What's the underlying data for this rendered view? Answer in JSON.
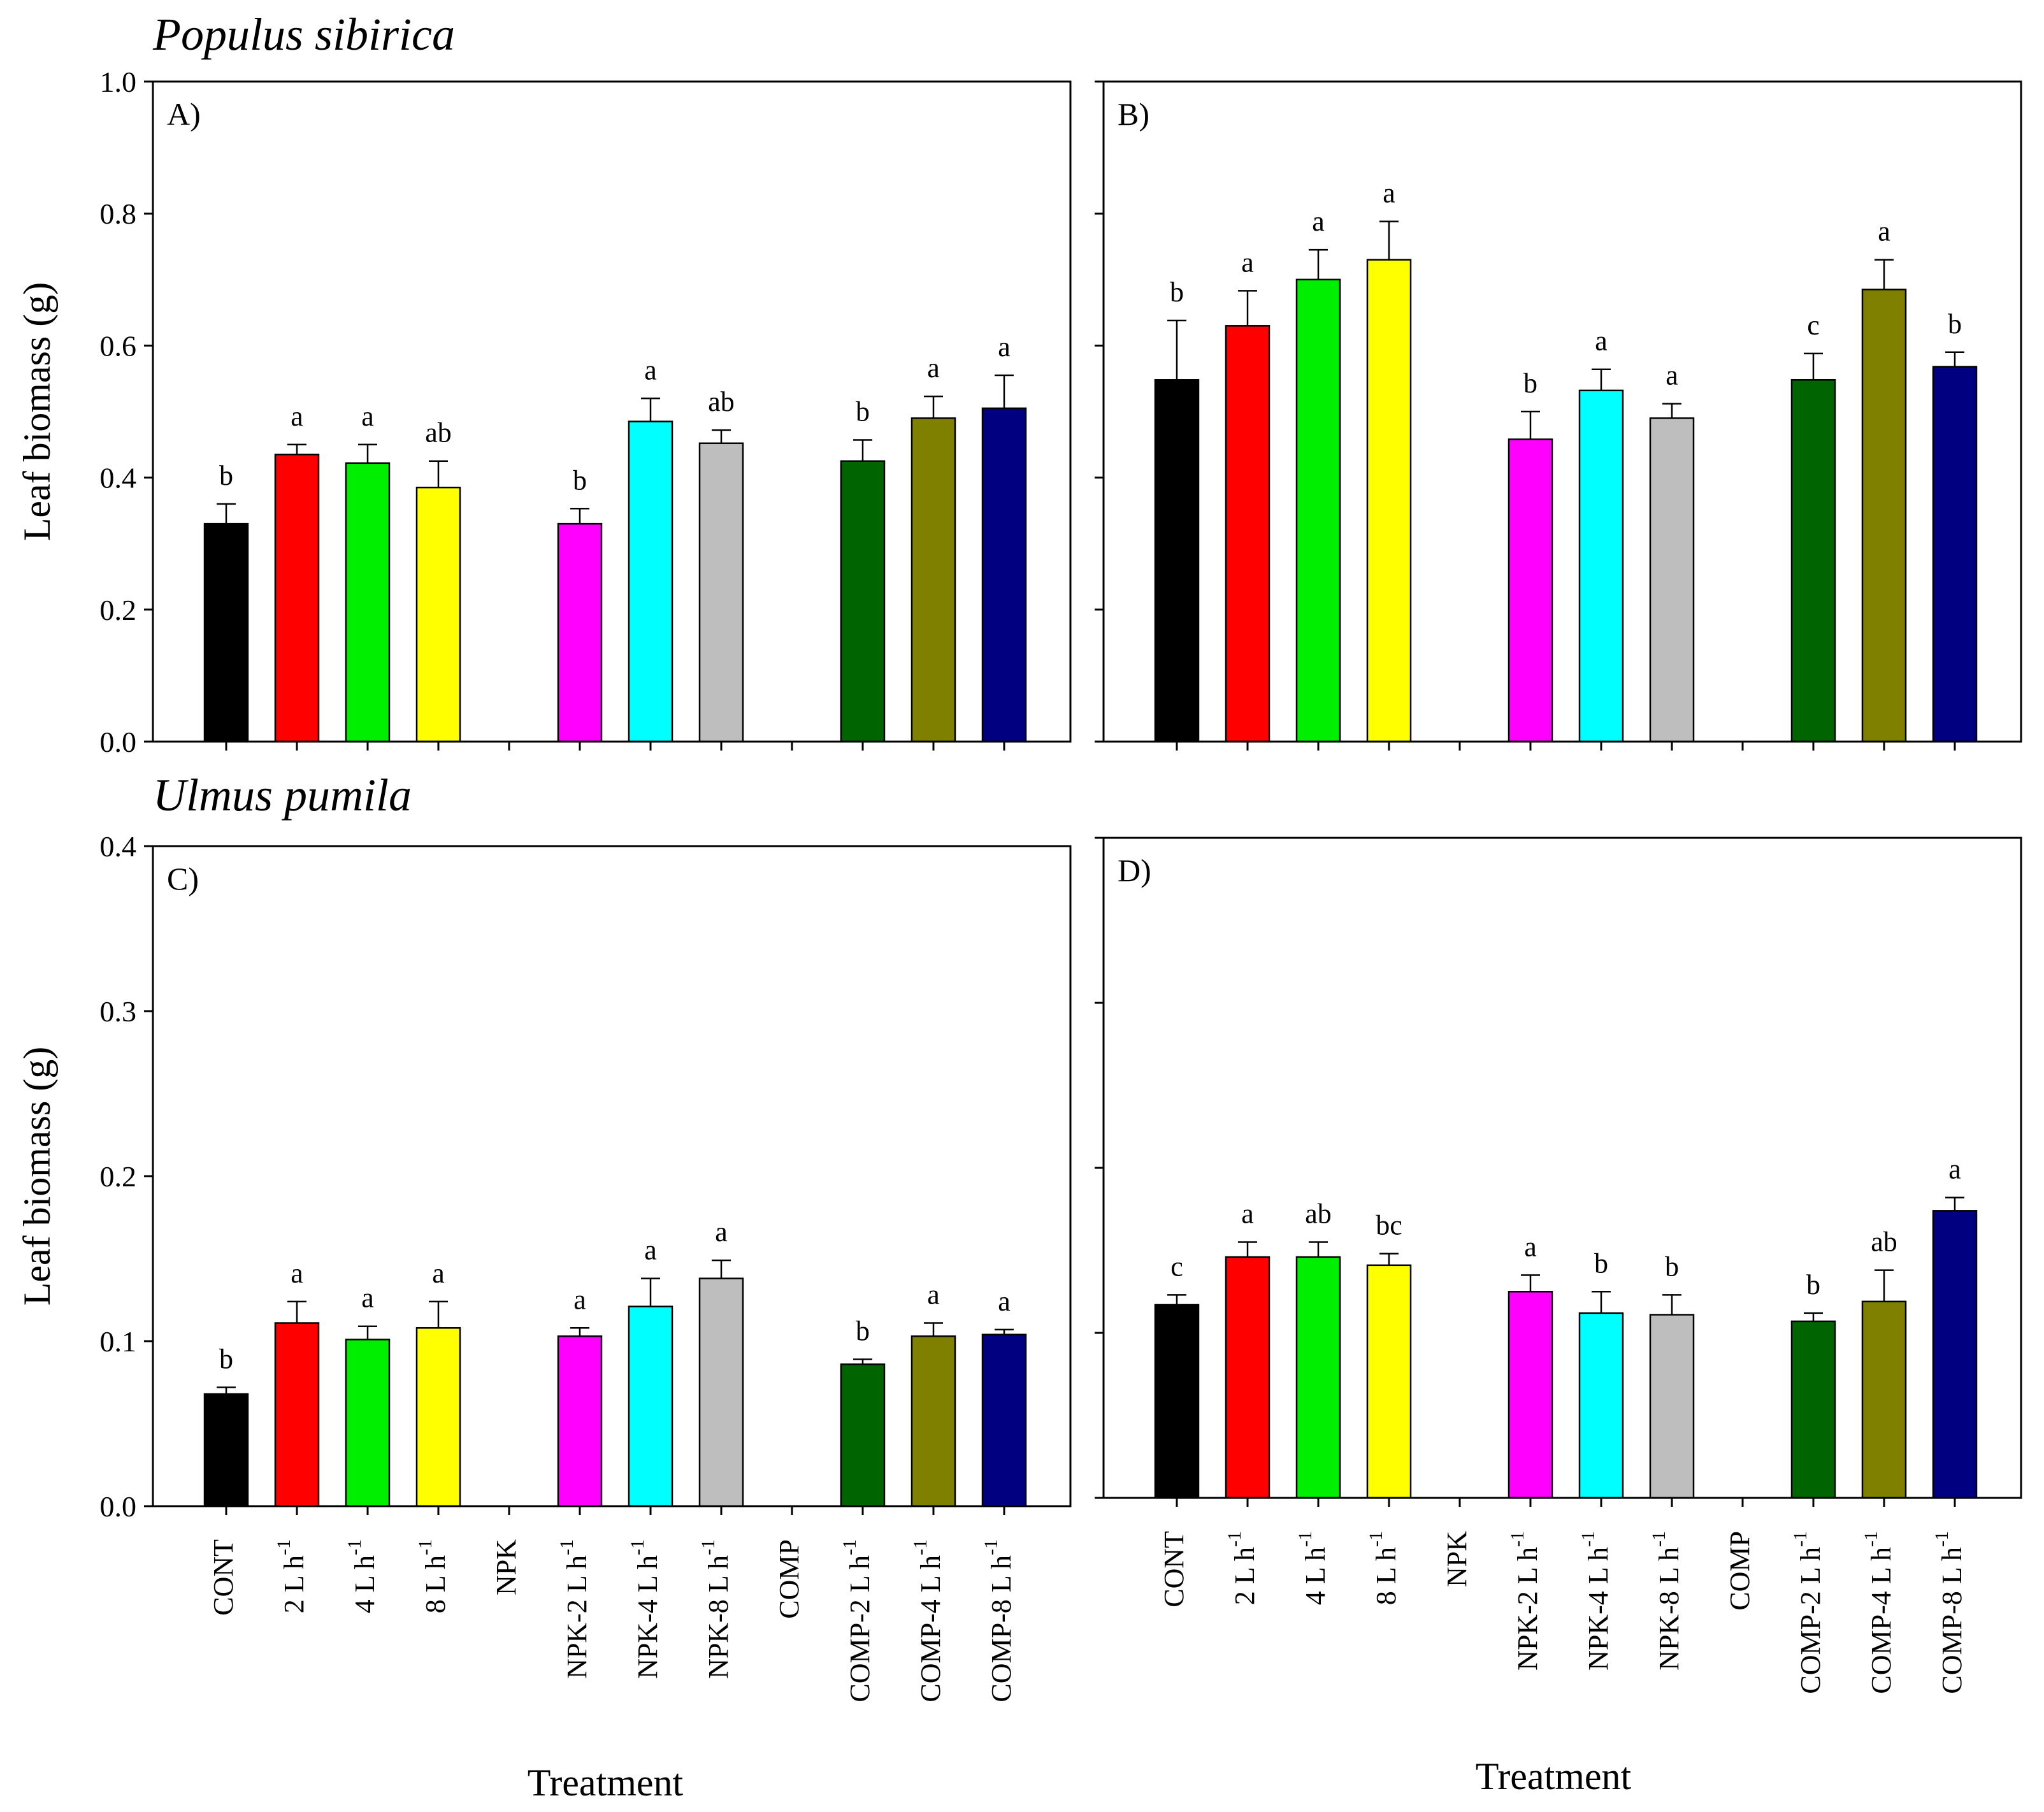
{
  "figure": {
    "species_top": "Populus sibirica",
    "species_bottom": "Ulmus pumila",
    "y_title": "Leaf biomass (g)",
    "x_title": "Treatment"
  },
  "chart_data": [
    {
      "type": "bar",
      "panel": "A)",
      "title": "",
      "xlabel": "",
      "ylabel": "Leaf biomass (g)",
      "ylim": [
        0,
        1.0
      ],
      "yticks": [
        0,
        0.2,
        0.4,
        0.6,
        0.8,
        1.0
      ],
      "ytick_labels": [
        "0.0",
        "0.2",
        "0.4",
        "0.6",
        "0.8",
        "1.0"
      ],
      "categories": [
        "CONT",
        "2 L h-1",
        "4 L h-1",
        "8 L h-1",
        "NPK",
        "NPK-2 L h-1",
        "NPK-4 L h-1",
        "NPK-8 L h-1",
        "COMP",
        "COMP-2 L h-1",
        "COMP-4 L h-1",
        "COMP-8 L h-1"
      ],
      "values": [
        0.33,
        0.435,
        0.422,
        0.385,
        null,
        0.33,
        0.485,
        0.452,
        null,
        0.425,
        0.49,
        0.505
      ],
      "errors": [
        0.03,
        0.015,
        0.028,
        0.04,
        null,
        0.023,
        0.035,
        0.02,
        null,
        0.032,
        0.033,
        0.05
      ],
      "letters": [
        "b",
        "a",
        "a",
        "ab",
        "",
        "b",
        "a",
        "ab",
        "",
        "b",
        "a",
        "a"
      ],
      "colors": [
        "#000000",
        "#ff0000",
        "#00ee00",
        "#ffff00",
        null,
        "#ff00ff",
        "#00ffff",
        "#bebebe",
        null,
        "#006400",
        "#7f7f00",
        "#000080"
      ]
    },
    {
      "type": "bar",
      "panel": "B)",
      "title": "",
      "xlabel": "",
      "ylabel": "",
      "ylim": [
        0,
        1.0
      ],
      "yticks": [
        0,
        0.2,
        0.4,
        0.6,
        0.8,
        1.0
      ],
      "categories": [
        "CONT",
        "2 L h-1",
        "4 L h-1",
        "8 L h-1",
        "NPK",
        "NPK-2 L h-1",
        "NPK-4 L h-1",
        "NPK-8 L h-1",
        "COMP",
        "COMP-2 L h-1",
        "COMP-4 L h-1",
        "COMP-8 L h-1"
      ],
      "values": [
        0.548,
        0.63,
        0.7,
        0.73,
        null,
        0.458,
        0.532,
        0.49,
        null,
        0.548,
        0.685,
        0.568
      ],
      "errors": [
        0.09,
        0.053,
        0.045,
        0.058,
        null,
        0.042,
        0.032,
        0.022,
        null,
        0.04,
        0.045,
        0.022
      ],
      "letters": [
        "b",
        "a",
        "a",
        "a",
        "",
        "b",
        "a",
        "a",
        "",
        "c",
        "a",
        "b"
      ],
      "colors": [
        "#000000",
        "#ff0000",
        "#00ee00",
        "#ffff00",
        null,
        "#ff00ff",
        "#00ffff",
        "#bebebe",
        null,
        "#006400",
        "#7f7f00",
        "#000080"
      ]
    },
    {
      "type": "bar",
      "panel": "C)",
      "title": "",
      "xlabel": "Treatment",
      "ylabel": "Leaf biomass (g)",
      "ylim": [
        0,
        0.4
      ],
      "yticks": [
        0,
        0.1,
        0.2,
        0.3,
        0.4
      ],
      "ytick_labels": [
        "0.0",
        "0.1",
        "0.2",
        "0.3",
        "0.4"
      ],
      "categories": [
        "CONT",
        "2 L h-1",
        "4 L h-1",
        "8 L h-1",
        "NPK",
        "NPK-2 L h-1",
        "NPK-4 L h-1",
        "NPK-8 L h-1",
        "COMP",
        "COMP-2 L h-1",
        "COMP-4 L h-1",
        "COMP-8 L h-1"
      ],
      "values": [
        0.068,
        0.111,
        0.101,
        0.108,
        null,
        0.103,
        0.121,
        0.138,
        null,
        0.086,
        0.103,
        0.104
      ],
      "errors": [
        0.004,
        0.013,
        0.008,
        0.016,
        null,
        0.005,
        0.017,
        0.011,
        null,
        0.003,
        0.008,
        0.003
      ],
      "letters": [
        "b",
        "a",
        "a",
        "a",
        "",
        "a",
        "a",
        "a",
        "",
        "b",
        "a",
        "a"
      ],
      "colors": [
        "#000000",
        "#ff0000",
        "#00ee00",
        "#ffff00",
        null,
        "#ff00ff",
        "#00ffff",
        "#bebebe",
        null,
        "#006400",
        "#7f7f00",
        "#000080"
      ]
    },
    {
      "type": "bar",
      "panel": "D)",
      "title": "",
      "xlabel": "Treatment",
      "ylabel": "",
      "ylim": [
        0,
        0.4
      ],
      "yticks": [
        0,
        0.1,
        0.2,
        0.3,
        0.4
      ],
      "categories": [
        "CONT",
        "2 L h-1",
        "4 L h-1",
        "8 L h-1",
        "NPK",
        "NPK-2 L h-1",
        "NPK-4 L h-1",
        "NPK-8 L h-1",
        "COMP",
        "COMP-2 L h-1",
        "COMP-4 L h-1",
        "COMP-8 L h-1"
      ],
      "values": [
        0.117,
        0.146,
        0.146,
        0.141,
        null,
        0.125,
        0.112,
        0.111,
        null,
        0.107,
        0.119,
        0.174
      ],
      "errors": [
        0.006,
        0.009,
        0.009,
        0.007,
        null,
        0.01,
        0.013,
        0.012,
        null,
        0.005,
        0.019,
        0.008
      ],
      "letters": [
        "c",
        "a",
        "ab",
        "bc",
        "",
        "a",
        "b",
        "b",
        "",
        "b",
        "ab",
        "a"
      ],
      "colors": [
        "#000000",
        "#ff0000",
        "#00ee00",
        "#ffff00",
        null,
        "#ff00ff",
        "#00ffff",
        "#bebebe",
        null,
        "#006400",
        "#7f7f00",
        "#000080"
      ]
    }
  ]
}
